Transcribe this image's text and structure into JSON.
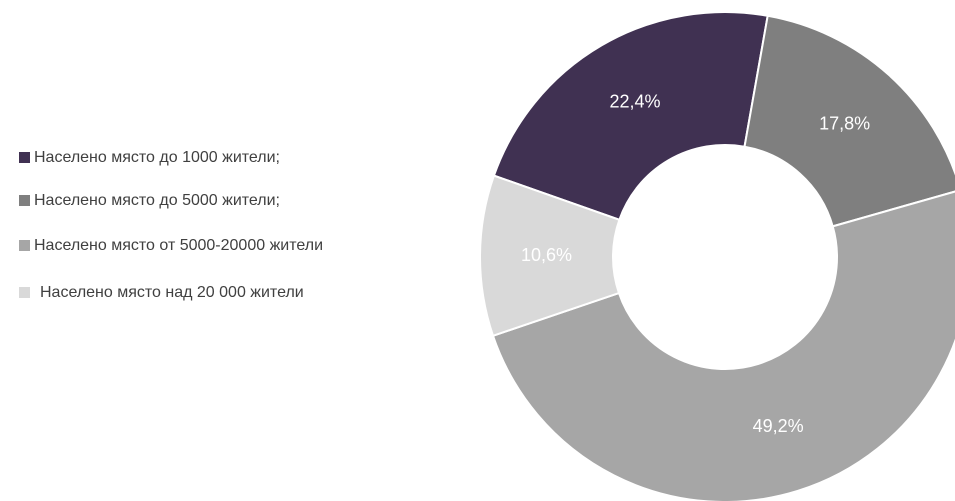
{
  "chart_data": {
    "type": "pie",
    "categories": [
      "Населено място до 1000 жители;",
      "Населено място до 5000 жители;",
      "Населено място от 5000-20000 жители",
      "Населено място над 20 000 жители"
    ],
    "values": [
      22.4,
      17.8,
      49.2,
      10.6
    ],
    "value_labels": [
      "22,4%",
      "17,8%",
      "49,2%",
      "10,6%"
    ],
    "colors": [
      "#403152",
      "#7f7f7f",
      "#a6a6a6",
      "#d9d9d9"
    ],
    "donut": true,
    "legend": "left"
  }
}
